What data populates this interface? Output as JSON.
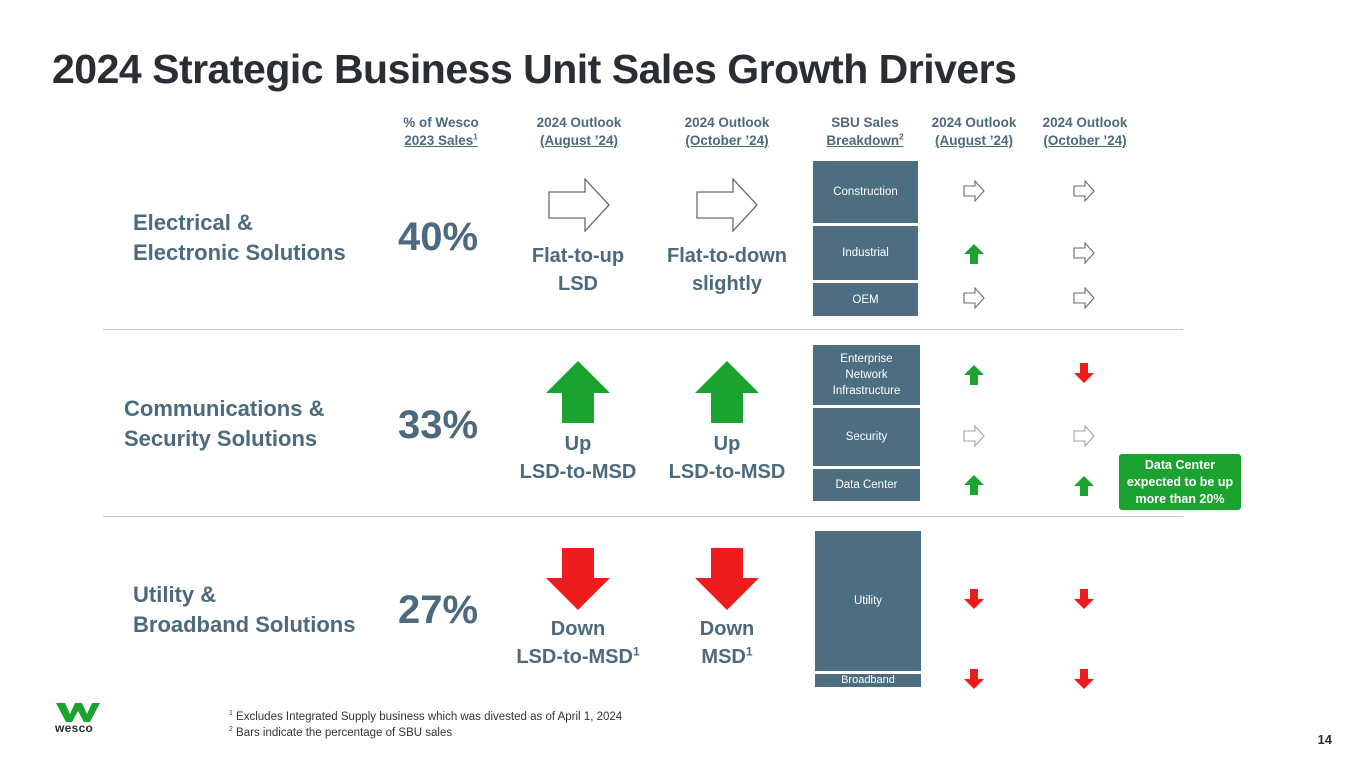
{
  "title": "2024 Strategic Business Unit Sales Growth Drivers",
  "columns": {
    "pct": {
      "line1": "% of Wesco",
      "line2": "2023 Sales",
      "sup": "1"
    },
    "aug": {
      "line1": "2024 Outlook",
      "line2": "(August ’24)"
    },
    "oct": {
      "line1": "2024 Outlook",
      "line2": "(October ’24)"
    },
    "sbu": {
      "line1": "SBU Sales",
      "line2": "Breakdown",
      "sup": "2"
    },
    "aug2": {
      "line1": "2024 Outlook",
      "line2": "(August ’24)"
    },
    "oct2": {
      "line1": "2024 Outlook",
      "line2": "(October ’24)"
    }
  },
  "segments": [
    {
      "name_line1": "Electrical &",
      "name_line2": "Electronic Solutions",
      "pct": "40%",
      "aug_line1": "Flat-to-up",
      "aug_line2": "LSD",
      "oct_line1": "Flat-to-down",
      "oct_line2": "slightly",
      "sub": [
        {
          "label": "Construction",
          "aug": "flat",
          "oct": "flat"
        },
        {
          "label": "Industrial",
          "aug": "up",
          "oct": "flat"
        },
        {
          "label": "OEM",
          "aug": "flat",
          "oct": "flat"
        }
      ]
    },
    {
      "name_line1": "Communications &",
      "name_line2": "Security Solutions",
      "pct": "33%",
      "aug_line1": "Up",
      "aug_line2": "LSD-to-MSD",
      "oct_line1": "Up",
      "oct_line2": "LSD-to-MSD",
      "sub": [
        {
          "label": "Enterprise Network Infrastructure",
          "aug": "up",
          "oct": "down"
        },
        {
          "label": "Security",
          "aug": "flat",
          "oct": "flat"
        },
        {
          "label": "Data Center",
          "aug": "up",
          "oct": "up"
        }
      ]
    },
    {
      "name_line1": "Utility &",
      "name_line2": "Broadband Solutions",
      "pct": "27%",
      "aug_line1": "Down",
      "aug_line2": "LSD-to-MSD",
      "aug_sup": "1",
      "oct_line1": "Down",
      "oct_line2": "MSD",
      "oct_sup": "1",
      "sub": [
        {
          "label": "Utility",
          "aug": "down",
          "oct": "down"
        },
        {
          "label": "Broadband",
          "aug": "down",
          "oct": "down"
        }
      ]
    }
  ],
  "callout": "Data Center expected to be up more than 20%",
  "footnotes": {
    "f1_sup": "1",
    "f1": "Excludes Integrated Supply business which was divested as of April 1, 2024",
    "f2_sup": "2",
    "f2": "Bars indicate the percentage of SBU sales"
  },
  "page_number": "14",
  "logo_text": "wesco",
  "colors": {
    "accent": "#4c6a7d",
    "bar": "#4d6d80",
    "up": "#1aa32f",
    "down": "#ee1c1c",
    "flat_outline": "#6b6b6b"
  },
  "icons": {
    "flat": "outline-right-arrow-icon",
    "up": "green-up-arrow-icon",
    "down": "red-down-arrow-icon"
  }
}
